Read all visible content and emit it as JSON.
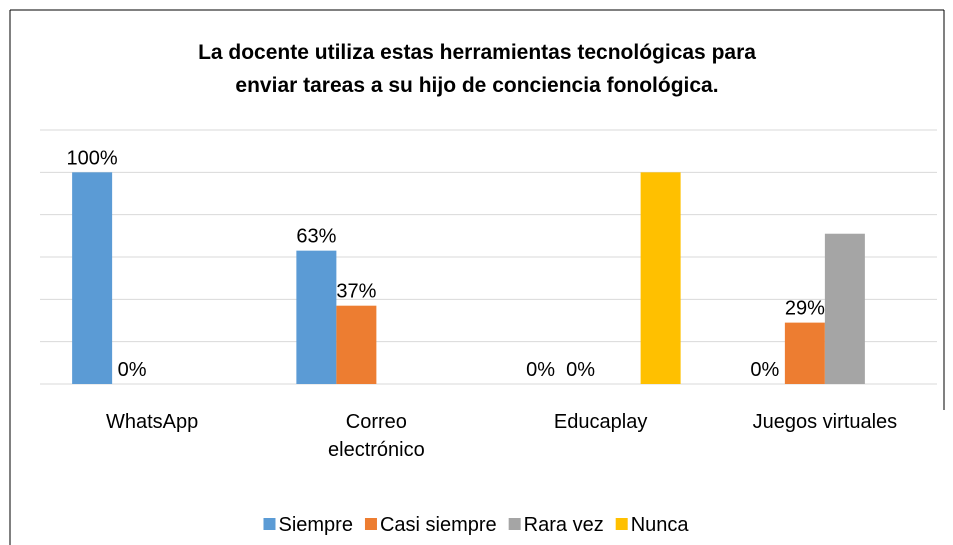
{
  "chart_data": {
    "type": "bar",
    "title": "La docente utiliza estas herramientas tecnológicas para\nenviar tareas a su hijo de conciencia fonológica.",
    "categories": [
      "WhatsApp",
      "Correo\nelectrónico",
      "Educaplay",
      "Juegos virtuales"
    ],
    "series": [
      {
        "name": "Siempre",
        "color": "#5b9bd5",
        "values": [
          100,
          63,
          0,
          0
        ],
        "value_labels": [
          "100%",
          "63%",
          "0%",
          "0%"
        ]
      },
      {
        "name": "Casi siempre",
        "color": "#ed7d31",
        "values": [
          0,
          37,
          0,
          29
        ],
        "value_labels": [
          "0%",
          "37%",
          "0%",
          "29%"
        ]
      },
      {
        "name": "Rara vez",
        "color": "#a5a5a5",
        "values": [
          null,
          null,
          null,
          71
        ],
        "value_labels": [
          null,
          null,
          null,
          null
        ]
      },
      {
        "name": "Nunca",
        "color": "#ffc000",
        "values": [
          null,
          null,
          100,
          null
        ],
        "value_labels": [
          null,
          null,
          null,
          null
        ]
      }
    ],
    "ylim": [
      0,
      120
    ],
    "yticks": [
      0,
      20,
      40,
      60,
      80,
      100,
      120
    ],
    "grid": true,
    "ytick_labels_visible": false,
    "legend": "bottom"
  }
}
